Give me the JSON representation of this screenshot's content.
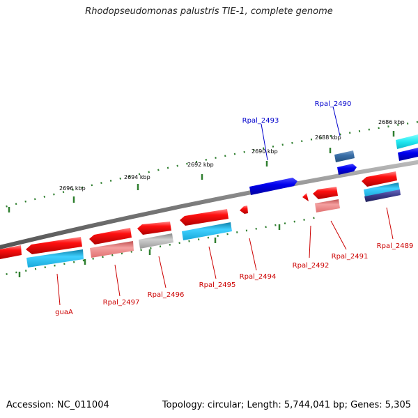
{
  "title": "Rhodopseudomonas palustris TIE-1, complete genome",
  "footer": {
    "accession": "Accession: NC_011004",
    "topology": "Topology: circular; Length: 5,744,041 bp; Genes: 5,305"
  },
  "colors": {
    "gene_red": "#ee0000",
    "gene_pink": "#f08080",
    "gene_gray": "#a8a8a8",
    "gene_cyan": "#1ab8e8",
    "gene_blue": "#0000dd",
    "gene_steel": "#3a6fa8",
    "gene_navy": "#3a3a8a",
    "backbone": "#888888",
    "ticks": "#2f7f2f",
    "label_red": "#cc0000",
    "label_blue": "#0000cc"
  },
  "scale": {
    "unit": "kbp",
    "ticks": [
      {
        "kbp": 2696,
        "label": "2696 kbp"
      },
      {
        "kbp": 2694,
        "label": "2694 kbp"
      },
      {
        "kbp": 2692,
        "label": "2692 kbp"
      },
      {
        "kbp": 2690,
        "label": "2690 kbp"
      },
      {
        "kbp": 2688,
        "label": "2688 kbp"
      },
      {
        "kbp": 2686,
        "label": "2686 kbp"
      }
    ]
  },
  "genes": [
    {
      "label": "guaA",
      "strand": "minus",
      "color": "red",
      "label_color": "red"
    },
    {
      "label": "Rpal_2497",
      "strand": "minus",
      "color": "red",
      "label_color": "red"
    },
    {
      "label": "Rpal_2496",
      "strand": "minus",
      "color": "red",
      "label_color": "red"
    },
    {
      "label": "Rpal_2495",
      "strand": "minus",
      "color": "red",
      "label_color": "red"
    },
    {
      "label": "Rpal_2494",
      "strand": "minus",
      "color": "red",
      "label_color": "red"
    },
    {
      "label": "Rpal_2493",
      "strand": "plus",
      "color": "blue",
      "label_color": "blue"
    },
    {
      "label": "Rpal_2492",
      "strand": "minus",
      "color": "red",
      "label_color": "red"
    },
    {
      "label": "Rpal_2491",
      "strand": "minus",
      "color": "red",
      "label_color": "red"
    },
    {
      "label": "Rpal_2490",
      "strand": "plus",
      "color": "blue",
      "label_color": "blue"
    },
    {
      "label": "Rpal_2489",
      "strand": "minus",
      "color": "red",
      "label_color": "red"
    }
  ]
}
